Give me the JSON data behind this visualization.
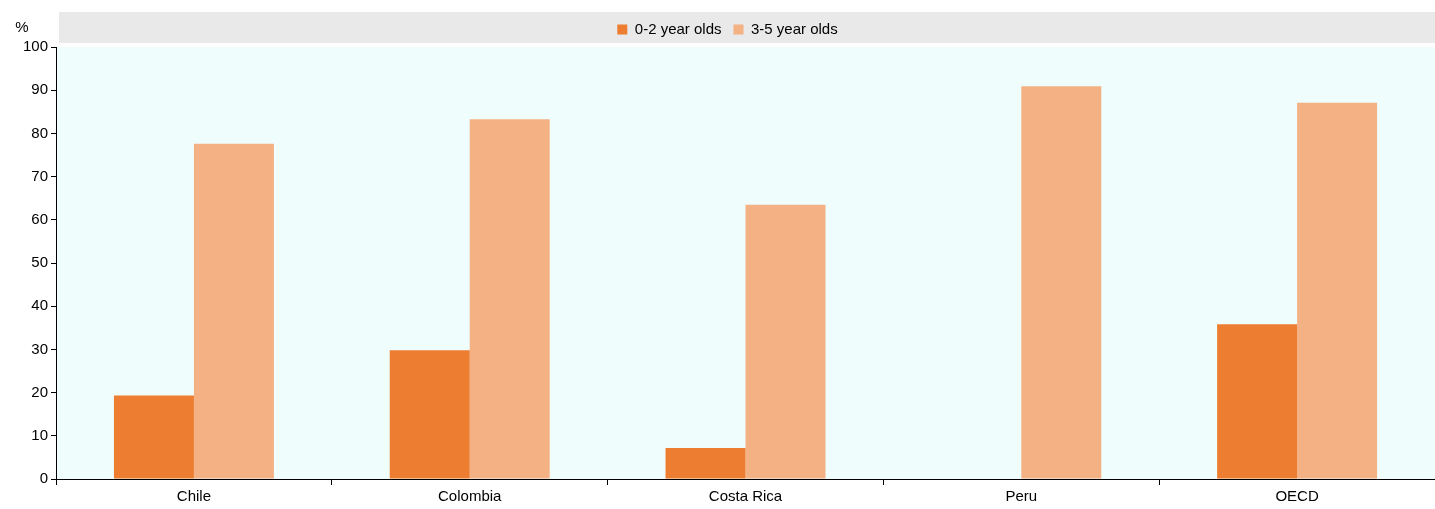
{
  "chart_data": {
    "type": "bar",
    "ylabel": "%",
    "categories": [
      "Chile",
      "Colombia",
      "Costa Rica",
      "Peru",
      "OECD"
    ],
    "series": [
      {
        "name": "0-2 year olds",
        "color": "#ed7d31",
        "values": [
          19.3,
          29.8,
          7.2,
          null,
          35.8
        ]
      },
      {
        "name": "3-5 year olds",
        "color": "#f4b183",
        "values": [
          77.6,
          83.3,
          63.5,
          90.9,
          87.1
        ]
      }
    ],
    "ylim": [
      0,
      100
    ],
    "yticks": [
      0,
      10,
      20,
      30,
      40,
      50,
      60,
      70,
      80,
      90,
      100
    ],
    "grid": false,
    "legend": "top"
  }
}
